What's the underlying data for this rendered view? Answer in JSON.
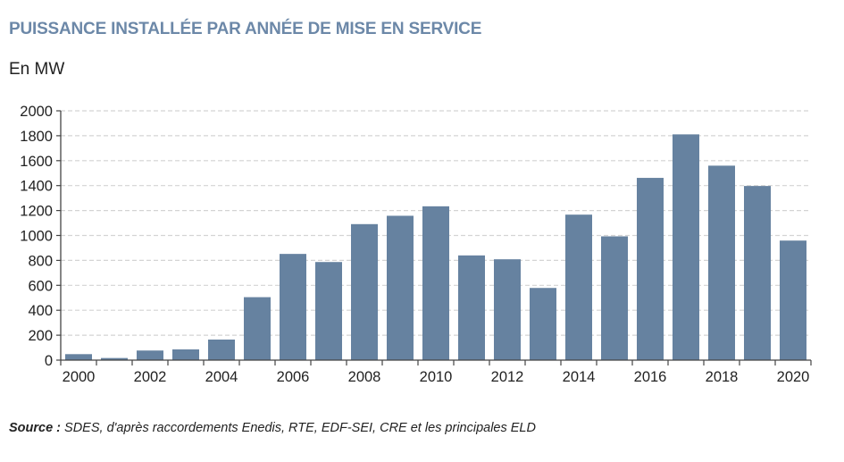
{
  "chart_data": {
    "type": "bar",
    "title": "PUISSANCE INSTALLÉE PAR ANNÉE DE MISE EN SERVICE",
    "ylabel": "En MW",
    "xlabel": "",
    "categories": [
      "2000",
      "2001",
      "2002",
      "2003",
      "2004",
      "2005",
      "2006",
      "2007",
      "2008",
      "2009",
      "2010",
      "2011",
      "2012",
      "2013",
      "2014",
      "2015",
      "2016",
      "2017",
      "2018",
      "2019",
      "2020"
    ],
    "values": [
      48,
      17,
      77,
      86,
      165,
      505,
      852,
      787,
      1091,
      1158,
      1234,
      840,
      809,
      579,
      1167,
      993,
      1462,
      1811,
      1560,
      1397,
      959
    ],
    "x_tick_labels": [
      "2000",
      "2002",
      "2004",
      "2006",
      "2008",
      "2010",
      "2012",
      "2014",
      "2016",
      "2018",
      "2020"
    ],
    "y_tick_labels": [
      "0",
      "200",
      "400",
      "600",
      "800",
      "1000",
      "1200",
      "1400",
      "1600",
      "1800",
      "2000"
    ],
    "ylim": [
      0,
      2000
    ],
    "grid": "horizontal dashed",
    "legend": "none",
    "bar_color": "#6682a0",
    "title_color": "#6c88a8"
  },
  "source": {
    "label": "Source :",
    "text": " SDES, d'après raccordements Enedis, RTE, EDF-SEI, CRE et les principales ELD"
  }
}
